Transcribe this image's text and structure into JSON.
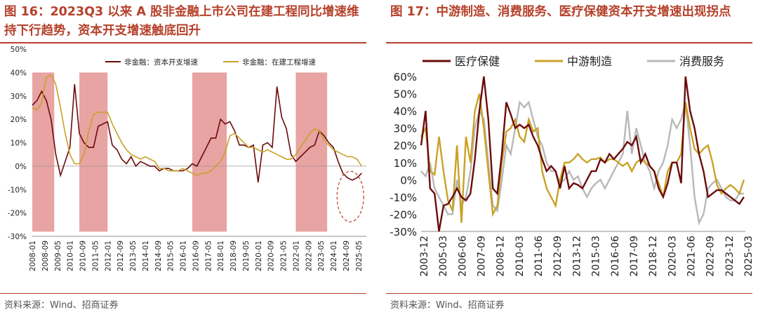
{
  "left": {
    "title": "图 16：2023Q3 以来 A 股非金融上市公司在建工程同比增速维持下行趋势，资本开支增速触底回升",
    "source": "资料来源：Wind、招商证券",
    "colors": {
      "capex": "#6b0b0b",
      "construction": "#c9a227",
      "shade": "#e8a3a3"
    },
    "chart_data": {
      "type": "line",
      "title": "",
      "ylim": [
        -30,
        50
      ],
      "y_ticks": [
        "50%",
        "40%",
        "30%",
        "20%",
        "10%",
        "0%",
        "-10%",
        "-20%",
        "-30%"
      ],
      "x_ticks": [
        "2008-01",
        "2008-09",
        "2009-05",
        "2010-01",
        "2010-09",
        "2011-05",
        "2012-01",
        "2012-09",
        "2013-05",
        "2014-01",
        "2014-09",
        "2015-05",
        "2016-01",
        "2016-09",
        "2017-05",
        "2018-01",
        "2018-09",
        "2019-05",
        "2020-01",
        "2020-09",
        "2021-05",
        "2022-01",
        "2022-09",
        "2023-05",
        "2024-01",
        "2024-09",
        "2025-05"
      ],
      "shaded_periods": [
        [
          "2008-01",
          "2009-03"
        ],
        [
          "2010-07",
          "2012-01"
        ],
        [
          "2016-07",
          "2018-05"
        ],
        [
          "2022-01",
          "2023-09"
        ]
      ],
      "series": [
        {
          "name": "非金融：资本开支增速",
          "color": "#6b0b0b",
          "x": [
            2008.0,
            2008.25,
            2008.5,
            2008.75,
            2009.0,
            2009.25,
            2009.5,
            2009.75,
            2010.0,
            2010.25,
            2010.5,
            2010.75,
            2011.0,
            2011.25,
            2011.5,
            2011.75,
            2012.0,
            2012.25,
            2012.5,
            2012.75,
            2013.0,
            2013.25,
            2013.5,
            2013.75,
            2014.0,
            2014.25,
            2014.5,
            2014.75,
            2015.0,
            2015.25,
            2015.5,
            2015.75,
            2016.0,
            2016.25,
            2016.5,
            2016.75,
            2017.0,
            2017.25,
            2017.5,
            2017.75,
            2018.0,
            2018.25,
            2018.5,
            2018.75,
            2019.0,
            2019.25,
            2019.5,
            2019.75,
            2020.0,
            2020.25,
            2020.5,
            2020.75,
            2021.0,
            2021.25,
            2021.5,
            2021.75,
            2022.0,
            2022.25,
            2022.5,
            2022.75,
            2023.0,
            2023.25,
            2023.5,
            2023.75,
            2024.0,
            2024.25,
            2024.5,
            2024.75,
            2025.0,
            2025.25,
            2025.5
          ],
          "values": [
            26,
            28,
            32,
            28,
            20,
            5,
            -4,
            2,
            8,
            35,
            14,
            10,
            8,
            8,
            17,
            18,
            19,
            9,
            7,
            3,
            1,
            4,
            0,
            2,
            1,
            0,
            0,
            -2,
            -1,
            -1,
            -2,
            -2,
            -2,
            -1,
            1,
            0,
            4,
            8,
            12,
            12,
            20,
            18,
            19,
            15,
            9,
            9,
            8,
            9,
            -7,
            9,
            10,
            8,
            34,
            21,
            16,
            5,
            2,
            4,
            6,
            8,
            9,
            15,
            13,
            10,
            8,
            2,
            -3,
            -5,
            -6,
            -5,
            -3
          ]
        },
        {
          "name": "非金融：在建工程增速",
          "color": "#c9a227",
          "x": [
            2008.0,
            2008.25,
            2008.5,
            2008.75,
            2009.0,
            2009.25,
            2009.5,
            2009.75,
            2010.0,
            2010.25,
            2010.5,
            2010.75,
            2011.0,
            2011.25,
            2011.5,
            2011.75,
            2012.0,
            2012.25,
            2012.5,
            2012.75,
            2013.0,
            2013.25,
            2013.5,
            2013.75,
            2014.0,
            2014.25,
            2014.5,
            2014.75,
            2015.0,
            2015.25,
            2015.5,
            2015.75,
            2016.0,
            2016.25,
            2016.5,
            2016.75,
            2017.0,
            2017.25,
            2017.5,
            2017.75,
            2018.0,
            2018.25,
            2018.5,
            2018.75,
            2019.0,
            2019.25,
            2019.5,
            2019.75,
            2020.0,
            2020.25,
            2020.5,
            2020.75,
            2021.0,
            2021.25,
            2021.5,
            2021.75,
            2022.0,
            2022.25,
            2022.5,
            2022.75,
            2023.0,
            2023.25,
            2023.5,
            2023.75,
            2024.0,
            2024.25,
            2024.5,
            2024.75,
            2025.0,
            2025.25,
            2025.5
          ],
          "values": [
            25,
            24,
            27,
            38,
            39,
            35,
            25,
            14,
            5,
            1,
            1,
            5,
            15,
            22,
            23,
            23,
            23,
            18,
            14,
            10,
            7,
            5,
            4,
            3,
            4,
            3,
            2,
            -1,
            -1,
            -2,
            -2,
            -2,
            -1,
            -2,
            -3,
            -4,
            -3,
            -3,
            -2,
            0,
            2,
            6,
            13,
            14,
            12,
            10,
            8,
            8,
            7,
            6,
            7,
            6,
            5,
            4,
            3,
            3,
            5,
            8,
            11,
            14,
            16,
            15,
            11,
            9,
            7,
            6,
            5,
            4,
            4,
            3,
            0
          ]
        }
      ]
    }
  },
  "right": {
    "title": "图 17：中游制造、消费服务、医疗保健资本开支增速出现拐点",
    "source": "资料来源：Wind、招商证券",
    "colors": {
      "health": "#6b0b0b",
      "mid": "#c9a227",
      "consumer": "#b8b8b8"
    },
    "chart_data": {
      "type": "line",
      "title": "",
      "ylim": [
        -30,
        60
      ],
      "y_ticks": [
        "60%",
        "50%",
        "40%",
        "30%",
        "20%",
        "10%",
        "0%",
        "-10%",
        "-20%",
        "-30%"
      ],
      "x_ticks": [
        "2003-12",
        "2005-03",
        "2006-06",
        "2007-09",
        "2008-12",
        "2010-03",
        "2011-06",
        "2012-09",
        "2013-12",
        "2015-03",
        "2016-06",
        "2017-09",
        "2018-12",
        "2020-03",
        "2021-06",
        "2022-09",
        "2023-12",
        "2025-03"
      ],
      "series": [
        {
          "name": "医疗保健",
          "color": "#6b0b0b",
          "x": [
            2003.9,
            2004.2,
            2004.5,
            2004.8,
            2005.1,
            2005.4,
            2005.7,
            2006.0,
            2006.3,
            2006.6,
            2006.9,
            2007.2,
            2007.5,
            2007.8,
            2008.1,
            2008.4,
            2008.7,
            2009.0,
            2009.3,
            2009.6,
            2009.9,
            2010.2,
            2010.5,
            2010.8,
            2011.1,
            2011.4,
            2011.7,
            2012.0,
            2012.3,
            2012.6,
            2012.9,
            2013.2,
            2013.5,
            2013.8,
            2014.1,
            2014.4,
            2014.7,
            2015.0,
            2015.3,
            2015.6,
            2015.9,
            2016.2,
            2016.5,
            2016.8,
            2017.1,
            2017.4,
            2017.7,
            2018.0,
            2018.3,
            2018.6,
            2018.9,
            2019.2,
            2019.5,
            2019.8,
            2020.1,
            2020.4,
            2020.7,
            2021.0,
            2021.3,
            2021.6,
            2021.9,
            2022.2,
            2022.5,
            2022.8,
            2023.1,
            2023.4,
            2023.7,
            2024.0,
            2024.3,
            2024.6,
            2024.9,
            2025.2,
            2025.5
          ],
          "values": [
            20,
            40,
            -5,
            -8,
            -30,
            -15,
            -14,
            -10,
            -5,
            -10,
            -12,
            -8,
            12,
            40,
            60,
            35,
            -5,
            -8,
            15,
            45,
            38,
            30,
            32,
            30,
            32,
            25,
            20,
            12,
            5,
            8,
            5,
            -5,
            8,
            -5,
            -2,
            -3,
            -5,
            0,
            5,
            5,
            12,
            10,
            15,
            12,
            15,
            18,
            22,
            20,
            25,
            10,
            15,
            8,
            5,
            -5,
            -10,
            -2,
            10,
            10,
            -2,
            60,
            40,
            30,
            15,
            5,
            -10,
            -8,
            -6,
            -6,
            -8,
            -10,
            -12,
            -14,
            -10
          ]
        },
        {
          "name": "中游制造",
          "color": "#c9a227",
          "x": [
            2003.9,
            2004.2,
            2004.5,
            2004.8,
            2005.1,
            2005.4,
            2005.7,
            2006.0,
            2006.3,
            2006.6,
            2006.9,
            2007.2,
            2007.5,
            2007.8,
            2008.1,
            2008.4,
            2008.7,
            2009.0,
            2009.3,
            2009.6,
            2009.9,
            2010.2,
            2010.5,
            2010.8,
            2011.1,
            2011.4,
            2011.7,
            2012.0,
            2012.3,
            2012.6,
            2012.9,
            2013.2,
            2013.5,
            2013.8,
            2014.1,
            2014.4,
            2014.7,
            2015.0,
            2015.3,
            2015.6,
            2015.9,
            2016.2,
            2016.5,
            2016.8,
            2017.1,
            2017.4,
            2017.7,
            2018.0,
            2018.3,
            2018.6,
            2018.9,
            2019.2,
            2019.5,
            2019.8,
            2020.1,
            2020.4,
            2020.7,
            2021.0,
            2021.3,
            2021.6,
            2021.9,
            2022.2,
            2022.5,
            2022.8,
            2023.1,
            2023.4,
            2023.7,
            2024.0,
            2024.3,
            2024.6,
            2024.9,
            2025.2,
            2025.5
          ],
          "values": [
            25,
            30,
            5,
            3,
            25,
            5,
            -12,
            -18,
            20,
            -25,
            25,
            10,
            40,
            50,
            30,
            5,
            -20,
            -15,
            10,
            28,
            30,
            35,
            25,
            22,
            35,
            28,
            30,
            5,
            -5,
            -10,
            -15,
            0,
            10,
            10,
            12,
            15,
            12,
            10,
            12,
            12,
            13,
            10,
            12,
            12,
            10,
            8,
            10,
            5,
            10,
            12,
            10,
            8,
            5,
            -2,
            -10,
            5,
            10,
            10,
            15,
            45,
            30,
            18,
            15,
            18,
            20,
            10,
            -3,
            -8,
            -5,
            -3,
            -5,
            -8,
            0
          ]
        },
        {
          "name": "消费服务",
          "color": "#b8b8b8",
          "x": [
            2003.9,
            2004.2,
            2004.5,
            2004.8,
            2005.1,
            2005.4,
            2005.7,
            2006.0,
            2006.3,
            2006.6,
            2006.9,
            2007.2,
            2007.5,
            2007.8,
            2008.1,
            2008.4,
            2008.7,
            2009.0,
            2009.3,
            2009.6,
            2009.9,
            2010.2,
            2010.5,
            2010.8,
            2011.1,
            2011.4,
            2011.7,
            2012.0,
            2012.3,
            2012.6,
            2012.9,
            2013.2,
            2013.5,
            2013.8,
            2014.1,
            2014.4,
            2014.7,
            2015.0,
            2015.3,
            2015.6,
            2015.9,
            2016.2,
            2016.5,
            2016.8,
            2017.1,
            2017.4,
            2017.7,
            2018.0,
            2018.3,
            2018.6,
            2018.9,
            2019.2,
            2019.5,
            2019.8,
            2020.1,
            2020.4,
            2020.7,
            2021.0,
            2021.3,
            2021.6,
            2021.9,
            2022.2,
            2022.5,
            2022.8,
            2023.1,
            2023.4,
            2023.7,
            2024.0,
            2024.3,
            2024.6,
            2024.9,
            2025.2,
            2025.5
          ],
          "values": [
            5,
            2,
            10,
            -5,
            -10,
            -15,
            -20,
            -20,
            0,
            -15,
            -10,
            5,
            30,
            40,
            35,
            10,
            -15,
            -18,
            0,
            20,
            15,
            30,
            45,
            42,
            45,
            35,
            25,
            20,
            10,
            5,
            5,
            -2,
            0,
            5,
            0,
            2,
            -5,
            -10,
            -5,
            -2,
            0,
            -5,
            0,
            5,
            10,
            15,
            40,
            15,
            30,
            20,
            10,
            5,
            -5,
            5,
            10,
            20,
            35,
            30,
            35,
            45,
            20,
            -10,
            -25,
            -20,
            -5,
            -2,
            0,
            -5,
            -10,
            -12,
            -12,
            -8,
            -8
          ]
        }
      ]
    }
  }
}
